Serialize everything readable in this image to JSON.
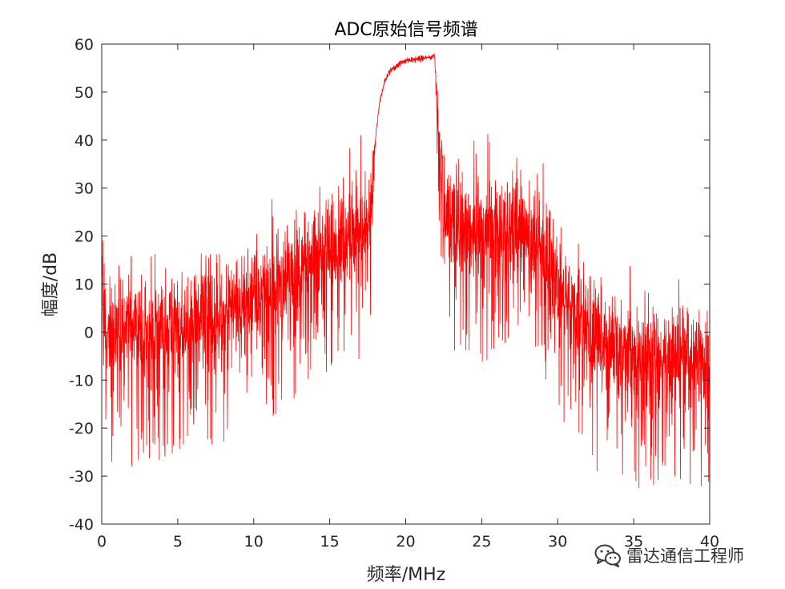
{
  "chart_data": {
    "type": "line",
    "title": "ADC原始信号频谱",
    "xlabel": "频率/MHz",
    "ylabel": "幅度/dB",
    "xlim": [
      0,
      40
    ],
    "ylim": [
      -40,
      60
    ],
    "xticks": [
      0,
      5,
      10,
      15,
      20,
      25,
      30,
      35,
      40
    ],
    "yticks": [
      -40,
      -30,
      -20,
      -10,
      0,
      10,
      20,
      30,
      40,
      50,
      60
    ],
    "xtick_labels": [
      "0",
      "5",
      "10",
      "15",
      "20",
      "25",
      "30",
      "35",
      "40"
    ],
    "ytick_labels": [
      "-40",
      "-30",
      "-20",
      "-10",
      "0",
      "10",
      "20",
      "30",
      "40",
      "50",
      "60"
    ],
    "grid": false,
    "legend": false,
    "box": true,
    "series": [
      {
        "color": "#ff0000",
        "description_of_shape": "noisy spectrum",
        "envelope": {
          "x": [
            0,
            0.05,
            0.3,
            2,
            4,
            6,
            8,
            10,
            12,
            14,
            16,
            17,
            17.5,
            17.8,
            18,
            18.3,
            18.6,
            19,
            19.5,
            20,
            20.5,
            21,
            21.5,
            21.9,
            22.1,
            22.3,
            22.6,
            23,
            24,
            25,
            26,
            27,
            28,
            29,
            30,
            31,
            32,
            33,
            34,
            35,
            36,
            37,
            38,
            39,
            40
          ],
          "y": [
            18,
            9,
            1,
            -0.5,
            0,
            2,
            4.5,
            7.5,
            11,
            15,
            19.5,
            22,
            23,
            29,
            40,
            48,
            52,
            54.5,
            55.8,
            56.5,
            56.8,
            57,
            57.2,
            57.5,
            44,
            32,
            25,
            22.5,
            21,
            21,
            21.5,
            21.5,
            20.5,
            17,
            11,
            4.5,
            -0.5,
            -3,
            -4,
            -4.5,
            -5,
            -5,
            -5,
            -5,
            -5.5
          ]
        },
        "noise_amplitude": {
          "x": [
            0,
            17.8,
            18,
            21.9,
            22.3,
            40
          ],
          "y": [
            7.5,
            7.5,
            0.6,
            0.6,
            7.5,
            7.5
          ]
        },
        "spike_min": -36.5
      }
    ]
  },
  "watermark": {
    "text": "雷达通信工程师",
    "icon": "wechat-icon"
  }
}
